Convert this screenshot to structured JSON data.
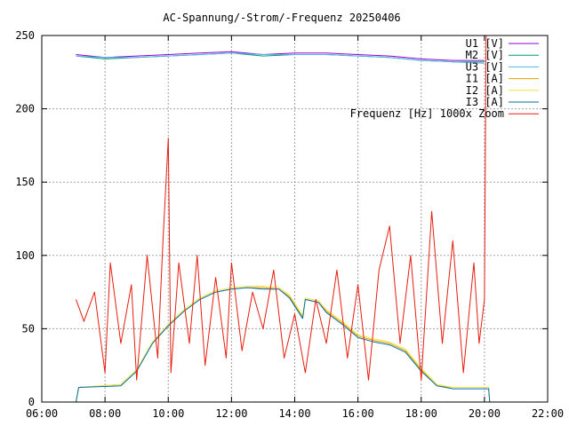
{
  "chart_data": {
    "type": "line",
    "title": "AC-Spannung/-Strom/-Frequenz 20250406",
    "xlabel": "",
    "ylabel": "",
    "xlim": [
      "06:00",
      "22:00"
    ],
    "ylim": [
      0,
      250
    ],
    "grid": true,
    "legend_position": "top-right",
    "x_ticks": [
      "06:00",
      "08:00",
      "10:00",
      "12:00",
      "14:00",
      "16:00",
      "18:00",
      "20:00",
      "22:00"
    ],
    "y_ticks": [
      0,
      50,
      100,
      150,
      200,
      250
    ],
    "series": [
      {
        "name": "U1 [V]",
        "color": "#9400d3",
        "x": [
          "07:05",
          "08:00",
          "09:00",
          "10:00",
          "11:00",
          "12:00",
          "13:00",
          "14:00",
          "15:00",
          "16:00",
          "17:00",
          "18:00",
          "19:00",
          "20:00"
        ],
        "values": [
          237,
          235,
          236,
          237,
          238,
          239,
          237,
          238,
          238,
          237,
          236,
          234,
          233,
          233
        ]
      },
      {
        "name": "M2 [V]",
        "color": "#009e73",
        "x": [
          "07:05",
          "08:00",
          "09:00",
          "10:00",
          "11:00",
          "12:00",
          "13:00",
          "14:00",
          "15:00",
          "16:00",
          "17:00",
          "18:00",
          "19:00",
          "20:00"
        ],
        "values": [
          236,
          234,
          235,
          236,
          237,
          238,
          236,
          237,
          237,
          236,
          235,
          233,
          232,
          232
        ]
      },
      {
        "name": "U3 [V]",
        "color": "#56b4e9",
        "x": [
          "07:05",
          "08:00",
          "09:00",
          "10:00",
          "11:00",
          "12:00",
          "13:00",
          "14:00",
          "15:00",
          "16:00",
          "17:00",
          "18:00",
          "19:00",
          "20:00"
        ],
        "values": [
          236,
          235,
          235,
          236,
          237,
          238,
          237,
          237,
          237,
          236,
          235,
          233,
          232,
          231
        ]
      },
      {
        "name": "I1 [A]",
        "color": "#e69f00",
        "x": [
          "07:05",
          "07:10",
          "08:30",
          "09:00",
          "09:30",
          "10:00",
          "10:30",
          "11:00",
          "11:30",
          "12:00",
          "12:30",
          "13:00",
          "13:30",
          "13:50",
          "14:15",
          "14:20",
          "14:45",
          "15:00",
          "15:30",
          "16:00",
          "16:30",
          "17:00",
          "17:30",
          "18:00",
          "18:30",
          "19:00",
          "19:30",
          "20:00",
          "20:08",
          "20:10"
        ],
        "values": [
          0,
          10,
          12,
          22,
          40,
          52,
          62,
          70,
          75,
          77,
          78,
          78,
          77,
          72,
          58,
          70,
          68,
          62,
          54,
          45,
          42,
          40,
          35,
          22,
          11,
          10,
          10,
          10,
          10,
          0
        ]
      },
      {
        "name": "I2 [A]",
        "color": "#f0e442",
        "x": [
          "07:05",
          "07:10",
          "08:30",
          "09:00",
          "09:30",
          "10:00",
          "10:30",
          "11:00",
          "11:30",
          "12:00",
          "12:30",
          "13:00",
          "13:30",
          "13:50",
          "14:15",
          "14:20",
          "14:45",
          "15:00",
          "15:30",
          "16:00",
          "16:30",
          "17:00",
          "17:30",
          "18:00",
          "18:30",
          "19:00",
          "19:30",
          "20:00",
          "20:08",
          "20:10"
        ],
        "values": [
          0,
          10,
          12,
          22,
          41,
          53,
          63,
          71,
          76,
          78,
          79,
          79,
          78,
          73,
          59,
          71,
          69,
          63,
          55,
          46,
          43,
          41,
          36,
          23,
          12,
          10,
          10,
          10,
          10,
          0
        ]
      },
      {
        "name": "I3 [A]",
        "color": "#0072b2",
        "x": [
          "07:05",
          "07:10",
          "08:30",
          "09:00",
          "09:30",
          "10:00",
          "10:30",
          "11:00",
          "11:30",
          "12:00",
          "12:30",
          "13:00",
          "13:30",
          "13:50",
          "14:15",
          "14:20",
          "14:45",
          "15:00",
          "15:30",
          "16:00",
          "16:30",
          "17:00",
          "17:30",
          "18:00",
          "18:30",
          "19:00",
          "19:30",
          "20:00",
          "20:08",
          "20:10"
        ],
        "values": [
          0,
          10,
          11,
          21,
          40,
          52,
          62,
          70,
          75,
          77,
          78,
          77,
          77,
          71,
          57,
          70,
          68,
          61,
          53,
          44,
          41,
          39,
          34,
          21,
          11,
          9,
          9,
          9,
          9,
          0
        ]
      },
      {
        "name": "Frequenz [Hz] 1000x Zoom",
        "color": "#e51e10",
        "x": [
          "07:05",
          "07:20",
          "07:40",
          "08:00",
          "08:10",
          "08:30",
          "08:50",
          "09:00",
          "09:20",
          "09:40",
          "09:50",
          "10:00",
          "10:05",
          "10:20",
          "10:40",
          "10:55",
          "11:10",
          "11:30",
          "11:50",
          "12:00",
          "12:20",
          "12:40",
          "13:00",
          "13:20",
          "13:40",
          "14:00",
          "14:20",
          "14:40",
          "15:00",
          "15:20",
          "15:40",
          "16:00",
          "16:20",
          "16:40",
          "17:00",
          "17:20",
          "17:40",
          "18:00",
          "18:20",
          "18:40",
          "19:00",
          "19:20",
          "19:40",
          "19:50",
          "20:00",
          "20:03"
        ],
        "values": [
          70,
          55,
          75,
          20,
          95,
          40,
          80,
          15,
          100,
          30,
          110,
          180,
          20,
          95,
          40,
          100,
          25,
          85,
          30,
          95,
          35,
          75,
          50,
          90,
          30,
          60,
          20,
          70,
          40,
          90,
          30,
          80,
          15,
          90,
          120,
          40,
          100,
          15,
          130,
          40,
          110,
          20,
          95,
          40,
          70,
          250
        ]
      }
    ]
  }
}
